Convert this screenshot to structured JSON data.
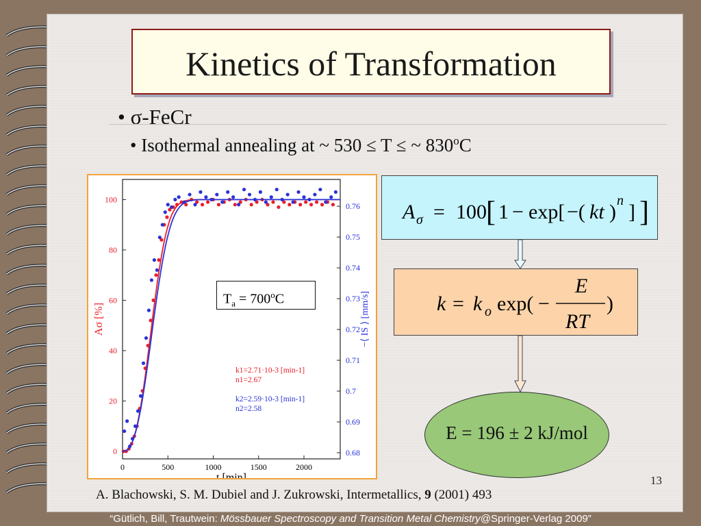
{
  "slide": {
    "title": "Kinetics of Transformation",
    "bullet1_symbol": "σ",
    "bullet1_text": "-FeCr",
    "bullet2_prefix": "Isothermal annealing at ~ 530 ≤ T ≤ ~ 830",
    "bullet2_sup": "o",
    "bullet2_suffix": "C",
    "page_number": "13",
    "reference_authors": "A. Blachowski, S. M. Dubiel and J. Zukrowski, Intermetallics, ",
    "reference_volume": "9",
    "reference_rest": " (2001) 493",
    "footer_prefix": "“Gütlich, Bill, Trautwein: ",
    "footer_italic": "Mössbauer Spectroscopy and Transition Metal Chemistry",
    "footer_suffix": "@Springer-Verlag 2009”"
  },
  "equations": {
    "eq1": "Aσ = 100[1 − exp[−(kt)^n]]",
    "eq2": "k = ko exp(− E / RT)",
    "result": "E = 196 ± 2 kJ/mol"
  },
  "inset": {
    "label_main": "T",
    "label_sub": "a",
    "label_mid": " = 700",
    "label_sup": "o",
    "label_end": "C"
  },
  "colors": {
    "series1": "#e8202a",
    "series2": "#2a32d8",
    "title_border": "#8b1a1a",
    "eq1_fill": "#c5f4fd",
    "eq2_fill": "#fdd3aa",
    "result_fill": "#98c878",
    "figure_border": "#f1a33b"
  },
  "chart_data": {
    "type": "scatter",
    "xlabel": "t [min]",
    "ylabel": "Aσ [%]",
    "y2label": "−⟨ IS ⟩ [mm/s]",
    "xlim": [
      0,
      2400
    ],
    "ylim": [
      -3,
      108
    ],
    "y2lim": [
      0.678,
      0.7687
    ],
    "xticks": [
      0,
      500,
      1000,
      1500,
      2000
    ],
    "yticks": [
      0,
      20,
      40,
      60,
      80,
      100
    ],
    "y2ticks": [
      0.68,
      0.69,
      0.7,
      0.71,
      0.72,
      0.73,
      0.74,
      0.75,
      0.76
    ],
    "series": [
      {
        "name": "k1=2.71·10^-3 [min^-1] n1=2.67",
        "k": 0.00271,
        "n": 2.67,
        "points": [
          [
            10,
            0
          ],
          [
            40,
            0
          ],
          [
            70,
            1
          ],
          [
            100,
            3
          ],
          [
            130,
            6
          ],
          [
            160,
            10
          ],
          [
            190,
            17
          ],
          [
            220,
            24
          ],
          [
            250,
            33
          ],
          [
            280,
            42
          ],
          [
            310,
            52
          ],
          [
            340,
            60
          ],
          [
            370,
            70
          ],
          [
            400,
            76
          ],
          [
            430,
            84
          ],
          [
            460,
            90
          ],
          [
            490,
            93
          ],
          [
            520,
            96
          ],
          [
            560,
            97
          ],
          [
            600,
            98
          ],
          [
            650,
            99
          ],
          [
            700,
            98
          ],
          [
            760,
            100
          ],
          [
            820,
            99
          ],
          [
            880,
            98
          ],
          [
            940,
            99
          ],
          [
            1000,
            100
          ],
          [
            1060,
            98
          ],
          [
            1120,
            99
          ],
          [
            1180,
            100
          ],
          [
            1240,
            98
          ],
          [
            1300,
            99
          ],
          [
            1360,
            100
          ],
          [
            1420,
            98
          ],
          [
            1480,
            99
          ],
          [
            1540,
            100
          ],
          [
            1600,
            98
          ],
          [
            1660,
            99
          ],
          [
            1720,
            97
          ],
          [
            1780,
            99
          ],
          [
            1840,
            98
          ],
          [
            1900,
            99
          ],
          [
            1960,
            98
          ],
          [
            2020,
            99
          ],
          [
            2080,
            98
          ],
          [
            2140,
            99
          ],
          [
            2200,
            98
          ],
          [
            2260,
            99
          ],
          [
            2320,
            98
          ]
        ]
      },
      {
        "name": "k2=2.59·10^-3 [min^-1] n2=2.58",
        "k": 0.00259,
        "n": 2.58,
        "points": [
          [
            20,
            8
          ],
          [
            50,
            12
          ],
          [
            80,
            2
          ],
          [
            110,
            5
          ],
          [
            140,
            10
          ],
          [
            170,
            16
          ],
          [
            200,
            22
          ],
          [
            230,
            35
          ],
          [
            260,
            45
          ],
          [
            290,
            56
          ],
          [
            320,
            68
          ],
          [
            350,
            76
          ],
          [
            380,
            72
          ],
          [
            410,
            85
          ],
          [
            440,
            90
          ],
          [
            470,
            95
          ],
          [
            500,
            98
          ],
          [
            540,
            97
          ],
          [
            580,
            100
          ],
          [
            620,
            101
          ],
          [
            680,
            99
          ],
          [
            740,
            102
          ],
          [
            800,
            98
          ],
          [
            860,
            103
          ],
          [
            920,
            101
          ],
          [
            980,
            100
          ],
          [
            1040,
            102
          ],
          [
            1100,
            99
          ],
          [
            1160,
            103
          ],
          [
            1220,
            101
          ],
          [
            1280,
            98
          ],
          [
            1340,
            104
          ],
          [
            1400,
            102
          ],
          [
            1460,
            100
          ],
          [
            1520,
            103
          ],
          [
            1580,
            99
          ],
          [
            1640,
            101
          ],
          [
            1700,
            104
          ],
          [
            1760,
            100
          ],
          [
            1820,
            102
          ],
          [
            1880,
            99
          ],
          [
            1940,
            103
          ],
          [
            2000,
            101
          ],
          [
            2060,
            100
          ],
          [
            2120,
            102
          ],
          [
            2180,
            104
          ],
          [
            2240,
            99
          ],
          [
            2300,
            101
          ],
          [
            2350,
            103
          ]
        ]
      }
    ],
    "annotations": [
      {
        "lines": [
          "k1=2.71·10-3 [min-1]",
          "n1=2.67"
        ]
      },
      {
        "lines": [
          "k2=2.59·10-3 [min-1]",
          "n2=2.58"
        ]
      }
    ]
  }
}
